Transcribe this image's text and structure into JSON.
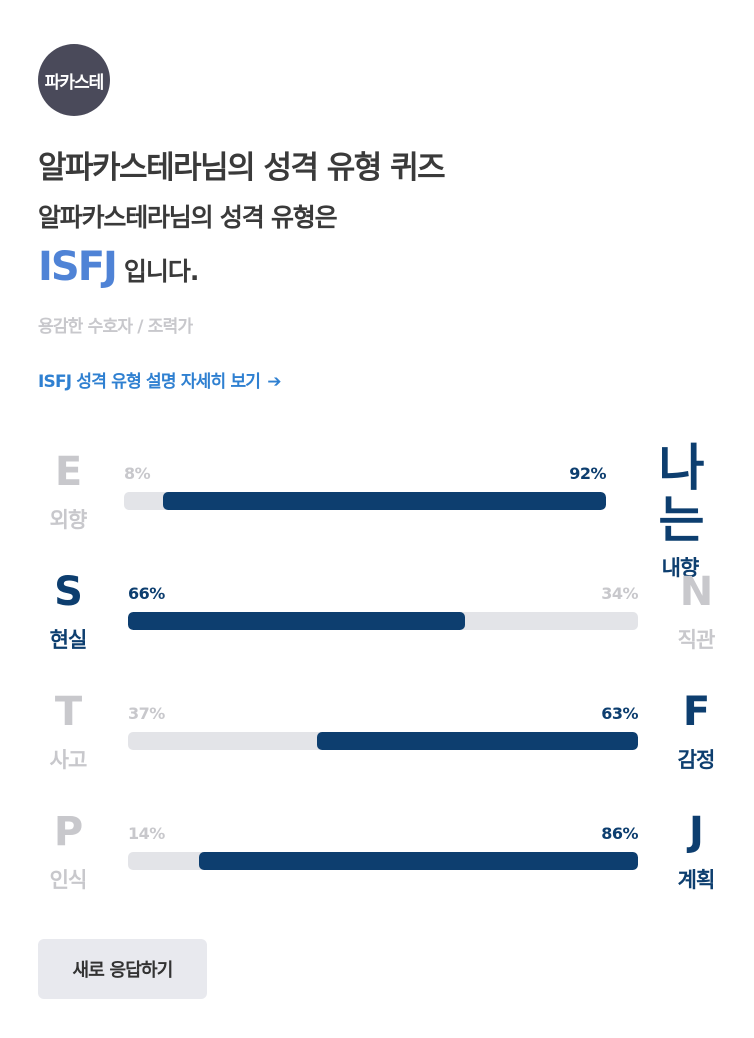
{
  "avatar": {
    "text": "파카스테"
  },
  "quiz_title": "알파카스테라님의 성격 유형 퀴즈",
  "result": {
    "intro": "알파카스테라님의 성격 유형은",
    "type": "ISFJ",
    "suffix": "입니다.",
    "nickname": "용감한 수호자 / 조력가",
    "detail_link": "ISFJ 성격 유형 설명 자세히 보기",
    "detail_arrow": "➔"
  },
  "traits": [
    {
      "left_letter": "E",
      "left_word": "외향",
      "left_pct": "8%",
      "right_letter": "나는",
      "right_word": "내향",
      "right_pct": "92%",
      "left_value": 8,
      "right_value": 92,
      "dominant": "right"
    },
    {
      "left_letter": "S",
      "left_word": "현실",
      "left_pct": "66%",
      "right_letter": "N",
      "right_word": "직관",
      "right_pct": "34%",
      "left_value": 66,
      "right_value": 34,
      "dominant": "left"
    },
    {
      "left_letter": "T",
      "left_word": "사고",
      "left_pct": "37%",
      "right_letter": "F",
      "right_word": "감정",
      "right_pct": "63%",
      "left_value": 37,
      "right_value": 63,
      "dominant": "right"
    },
    {
      "left_letter": "P",
      "left_word": "인식",
      "left_pct": "14%",
      "right_letter": "J",
      "right_word": "계획",
      "right_pct": "86%",
      "left_value": 14,
      "right_value": 86,
      "dominant": "right"
    }
  ],
  "reset_button": "새로 응답하기",
  "colors": {
    "accent": "#0d3e6f",
    "link": "#2f80d1",
    "type_highlight": "#4f83d6",
    "muted": "#c8c8cc",
    "track": "#e3e4e8"
  }
}
